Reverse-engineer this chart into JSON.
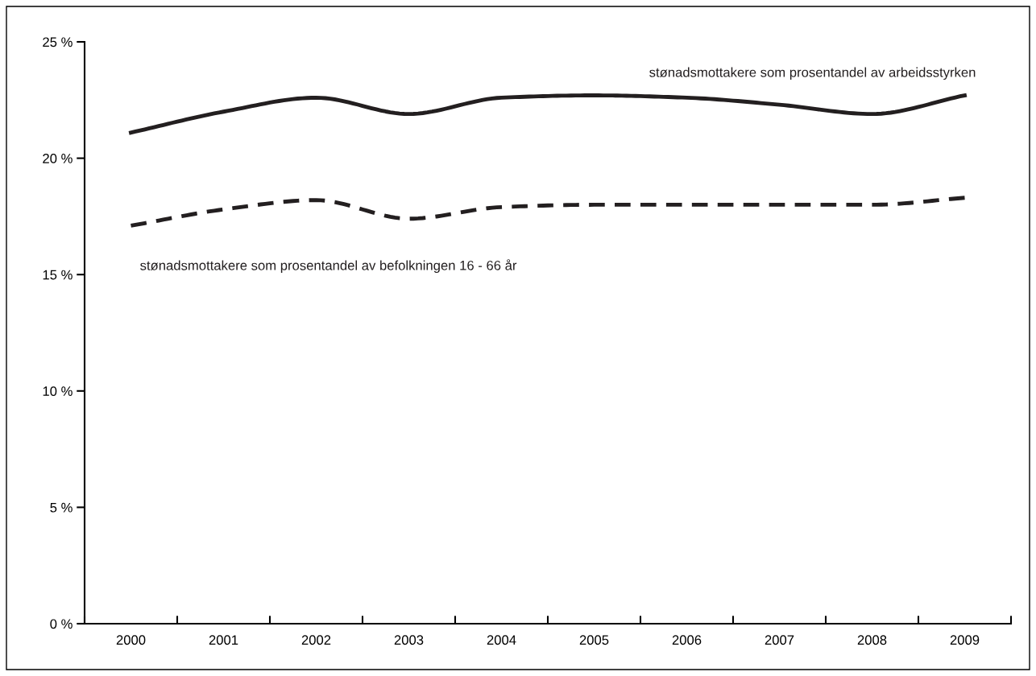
{
  "chart_data": {
    "type": "line",
    "categories": [
      "2000",
      "2001",
      "2002",
      "2003",
      "2004",
      "2005",
      "2006",
      "2007",
      "2008",
      "2009"
    ],
    "series": [
      {
        "name": "stønadsmottakere som prosentandel av arbeidsstyrken",
        "color": "#231f20",
        "line_style": "solid",
        "values": [
          21.1,
          22.0,
          22.6,
          21.9,
          22.6,
          22.7,
          22.6,
          22.3,
          21.9,
          22.7
        ]
      },
      {
        "name": "stønadsmottakere som prosentandel av befolkningen 16 - 66 år",
        "color": "#231f20",
        "line_style": "dashed",
        "values": [
          17.1,
          17.8,
          18.2,
          17.4,
          17.9,
          18.0,
          18.0,
          18.0,
          18.0,
          18.3
        ]
      }
    ],
    "ylim": [
      0,
      25
    ],
    "yticks": [
      {
        "value": 0,
        "label": "0 %"
      },
      {
        "value": 5,
        "label": "5 %"
      },
      {
        "value": 10,
        "label": "10 %"
      },
      {
        "value": 15,
        "label": "15 %"
      },
      {
        "value": 20,
        "label": "20 %"
      },
      {
        "value": 25,
        "label": "25 %"
      }
    ],
    "grid": false,
    "legend": false,
    "marker": "none"
  }
}
